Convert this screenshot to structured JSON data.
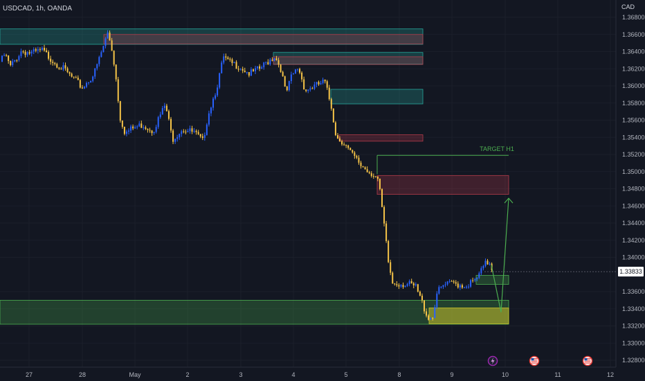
{
  "header": {
    "symbol": "USDCAD, 1h, OANDA",
    "currency": "CAD"
  },
  "chart_data": {
    "type": "candlestick",
    "title": "USDCAD, 1h, OANDA",
    "y_axis": {
      "unit": "CAD",
      "ticks": [
        "1.36800",
        "1.36600",
        "1.36400",
        "1.36200",
        "1.36000",
        "1.35800",
        "1.35600",
        "1.35400",
        "1.35200",
        "1.35000",
        "1.34800",
        "1.34600",
        "1.34400",
        "1.34200",
        "1.34000",
        "1.33600",
        "1.33400",
        "1.33200",
        "1.33000",
        "1.32800"
      ],
      "range": [
        1.3275,
        1.3685
      ],
      "current_price": "1.33833"
    },
    "x_axis": {
      "ticks": [
        "27",
        "28",
        "May",
        "2",
        "3",
        "4",
        "5",
        "8",
        "9",
        "10",
        "11",
        "12"
      ]
    },
    "series_colors": {
      "up": "#2962ff",
      "down": "#f7c548"
    },
    "path": [
      [
        0,
        1.3628
      ],
      [
        6,
        1.3637
      ],
      [
        14,
        1.3622
      ],
      [
        30,
        1.3641
      ],
      [
        45,
        1.3638
      ],
      [
        60,
        1.3641
      ],
      [
        75,
        1.363
      ],
      [
        90,
        1.362
      ],
      [
        105,
        1.3608
      ],
      [
        118,
        1.3598
      ],
      [
        135,
        1.3614
      ],
      [
        148,
        1.3645
      ],
      [
        155,
        1.3663
      ],
      [
        162,
        1.3638
      ],
      [
        168,
        1.36
      ],
      [
        172,
        1.3565
      ],
      [
        180,
        1.3545
      ],
      [
        190,
        1.355
      ],
      [
        205,
        1.3555
      ],
      [
        220,
        1.3548
      ],
      [
        238,
        1.3578
      ],
      [
        248,
        1.3538
      ],
      [
        262,
        1.355
      ],
      [
        280,
        1.3545
      ],
      [
        292,
        1.3535
      ],
      [
        300,
        1.3568
      ],
      [
        312,
        1.3598
      ],
      [
        322,
        1.3633
      ],
      [
        330,
        1.3627
      ],
      [
        345,
        1.3623
      ],
      [
        360,
        1.3614
      ],
      [
        375,
        1.362
      ],
      [
        388,
        1.363
      ],
      [
        396,
        1.3635
      ],
      [
        405,
        1.362
      ],
      [
        412,
        1.359
      ],
      [
        420,
        1.361
      ],
      [
        430,
        1.3622
      ],
      [
        440,
        1.3595
      ],
      [
        455,
        1.36
      ],
      [
        468,
        1.3605
      ],
      [
        478,
        1.3575
      ],
      [
        485,
        1.354
      ],
      [
        495,
        1.3535
      ],
      [
        505,
        1.3522
      ],
      [
        520,
        1.3508
      ],
      [
        532,
        1.35
      ],
      [
        540,
        1.3497
      ],
      [
        545,
        1.349
      ],
      [
        549,
        1.347
      ],
      [
        555,
        1.343
      ],
      [
        560,
        1.3395
      ],
      [
        566,
        1.337
      ],
      [
        575,
        1.337
      ],
      [
        590,
        1.3368
      ],
      [
        600,
        1.3365
      ],
      [
        610,
        1.3345
      ],
      [
        617,
        1.333
      ],
      [
        624,
        1.333
      ],
      [
        630,
        1.3358
      ],
      [
        640,
        1.3367
      ],
      [
        655,
        1.337
      ],
      [
        670,
        1.3367
      ],
      [
        685,
        1.3372
      ],
      [
        692,
        1.338
      ],
      [
        700,
        1.3392
      ],
      [
        706,
        1.3395
      ],
      [
        712,
        1.3383
      ]
    ],
    "zones": [
      {
        "type": "supply",
        "color": "#26a69a",
        "x": [
          0,
          611
        ],
        "y": [
          1.36485,
          1.36665
        ]
      },
      {
        "type": "supply",
        "color": "#b23b4a",
        "x": [
          150,
          611
        ],
        "y": [
          1.3649,
          1.366
        ]
      },
      {
        "type": "supply",
        "color": "#26a69a",
        "x": [
          395,
          611
        ],
        "y": [
          1.36255,
          1.3639
        ]
      },
      {
        "type": "supply",
        "color": "#b23b4a",
        "x": [
          395,
          611
        ],
        "y": [
          1.3625,
          1.3634
        ]
      },
      {
        "type": "supply",
        "color": "#26a69a",
        "x": [
          478,
          611
        ],
        "y": [
          1.3579,
          1.3596
        ]
      },
      {
        "type": "supply",
        "color": "#b23b4a",
        "x": [
          490,
          611
        ],
        "y": [
          1.35355,
          1.3543
        ]
      },
      {
        "type": "target",
        "color": "#b23b4a",
        "x": [
          545,
          735
        ],
        "y": [
          1.34735,
          1.34955
        ]
      },
      {
        "type": "demand",
        "color": "#4caf50",
        "x": [
          0,
          735
        ],
        "y": [
          1.3322,
          1.335
        ]
      },
      {
        "type": "demand",
        "color": "#c9c12b",
        "x": [
          620,
          735
        ],
        "y": [
          1.33225,
          1.3341
        ]
      },
      {
        "type": "demand",
        "color": "#4caf50",
        "x": [
          688,
          735
        ],
        "y": [
          1.33685,
          1.3379
        ]
      }
    ],
    "annotations": [
      {
        "text": "TARGET H1",
        "x": 718,
        "y": 1.3519,
        "line_x": [
          545,
          735
        ],
        "color": "#4caf50"
      }
    ],
    "projection_arrow": {
      "color": "#4caf50",
      "from": [
        710,
        1.3391
      ],
      "via": [
        724,
        1.3336
      ],
      "to": [
        735,
        1.3469
      ]
    },
    "event_icons": [
      {
        "name": "lightning-icon",
        "x": 712
      },
      {
        "name": "us-flag-icon",
        "x": 772
      },
      {
        "name": "us-flag-icon",
        "x": 849
      }
    ]
  }
}
